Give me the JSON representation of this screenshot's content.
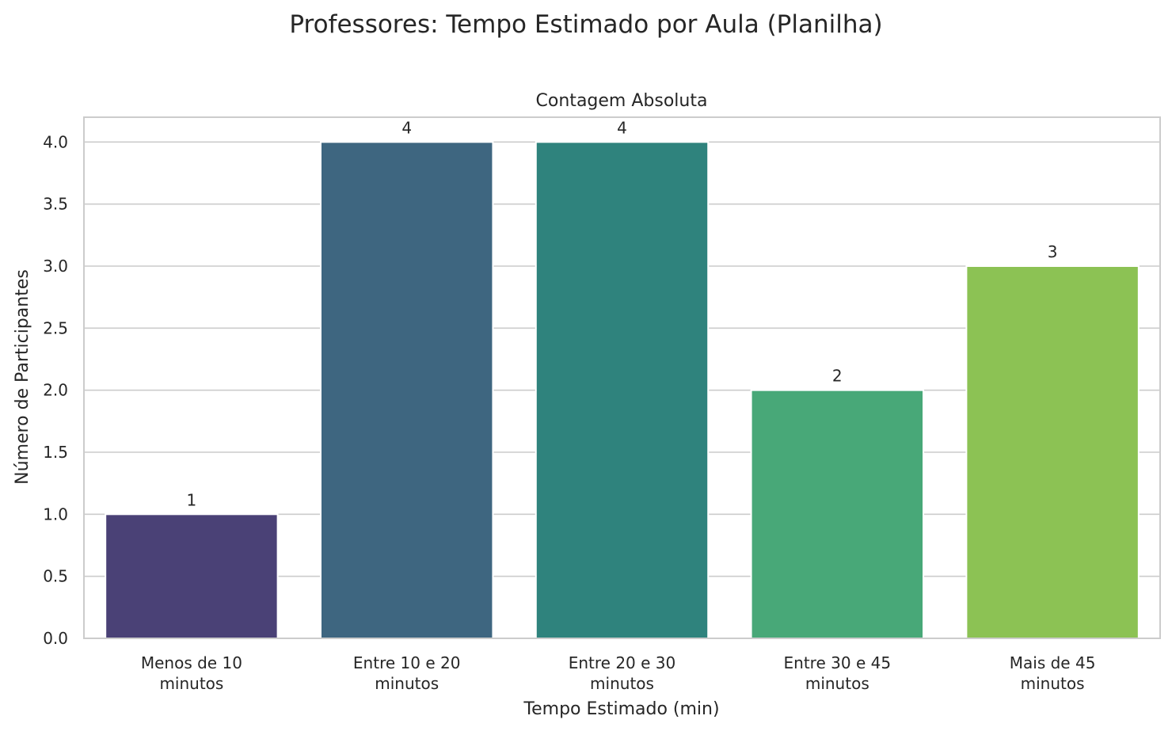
{
  "chart_data": {
    "type": "bar",
    "title": "Professores: Tempo Estimado por Aula (Planilha)",
    "subtitle": "Contagem Absoluta",
    "xlabel": "Tempo Estimado (min)",
    "ylabel": "Número de Participantes",
    "categories": [
      [
        "Menos de 10",
        "minutos"
      ],
      [
        "Entre 10 e 20",
        "minutos"
      ],
      [
        "Entre 20 e 30",
        "minutos"
      ],
      [
        "Entre 30 e 45",
        "minutos"
      ],
      [
        "Mais de 45",
        "minutos"
      ]
    ],
    "values": [
      1,
      4,
      4,
      2,
      3
    ],
    "colors": [
      "#4a4176",
      "#3e6680",
      "#2f837d",
      "#48a878",
      "#8cc254"
    ],
    "ylim": [
      0,
      4.2
    ],
    "yticks": [
      "0.0",
      "0.5",
      "1.0",
      "1.5",
      "2.0",
      "2.5",
      "3.0",
      "3.5",
      "4.0"
    ],
    "grid": "y",
    "legend": "none"
  }
}
